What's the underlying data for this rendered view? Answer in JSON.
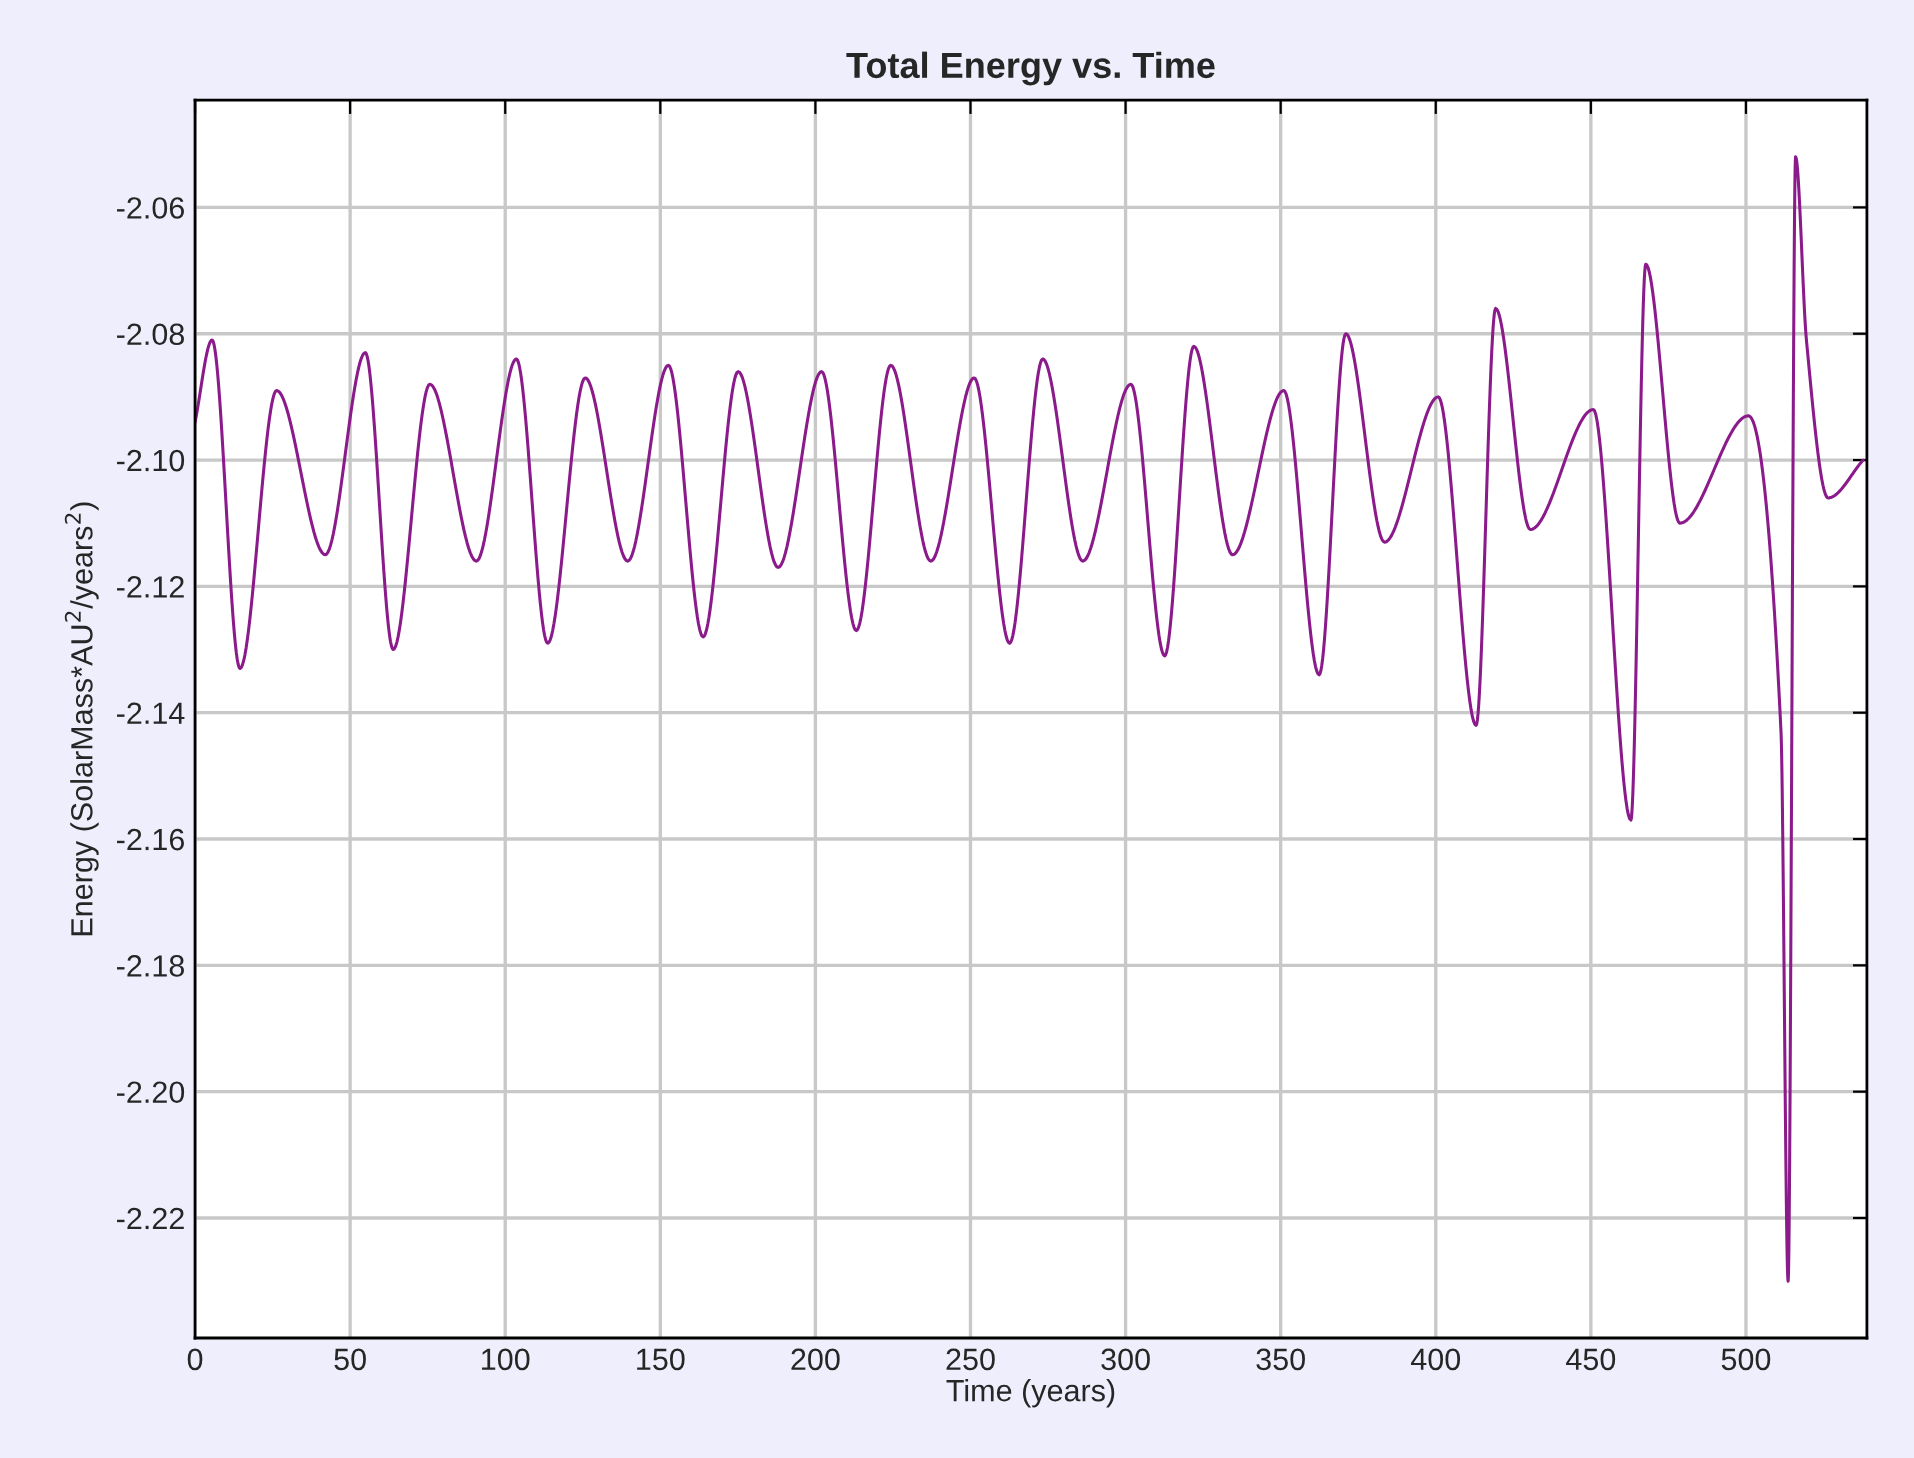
{
  "chart_data": {
    "type": "line",
    "title": "Total Energy vs. Time",
    "xlabel": "Time (years)",
    "ylabel": "Energy (SolarMass*AU$^{2}$/years$^{2}$)",
    "series": [
      {
        "color": "#8b1a8b",
        "x": [
          0,
          5.5,
          14.5,
          26.3,
          42,
          54.9,
          63.9,
          75.7,
          90.7,
          103.6,
          113.7,
          125.8,
          139.5,
          152.6,
          163.8,
          175.1,
          188,
          202,
          213.2,
          224.3,
          237.2,
          251.2,
          262.6,
          273.3,
          286.2,
          301.7,
          312.6,
          322,
          334.5,
          351,
          362.4,
          371,
          383.5,
          400.8,
          413,
          419.3,
          430.5,
          450.8,
          462.9,
          467.7,
          478.7,
          500.8,
          511.3,
          513.6,
          516,
          519.5,
          526.5,
          537.8
        ],
        "values": [
          -2.094,
          -2.081,
          -2.133,
          -2.089,
          -2.115,
          -2.083,
          -2.13,
          -2.088,
          -2.116,
          -2.084,
          -2.129,
          -2.087,
          -2.116,
          -2.085,
          -2.128,
          -2.086,
          -2.117,
          -2.086,
          -2.127,
          -2.085,
          -2.116,
          -2.087,
          -2.129,
          -2.084,
          -2.116,
          -2.088,
          -2.131,
          -2.082,
          -2.115,
          -2.089,
          -2.134,
          -2.08,
          -2.113,
          -2.09,
          -2.142,
          -2.076,
          -2.111,
          -2.092,
          -2.157,
          -2.069,
          -2.11,
          -2.093,
          -2.143,
          -2.23,
          -2.052,
          -2.081,
          -2.106,
          -2.1
        ]
      }
    ],
    "xlim": [
      0,
      539
    ],
    "ylim": [
      -2.239,
      -2.043
    ],
    "xticks": [
      0,
      50,
      100,
      150,
      200,
      250,
      300,
      350,
      400,
      450,
      500
    ],
    "yticks": [
      -2.22,
      {
        "value": -2.2,
        "label": "-2.20"
      },
      -2.18,
      -2.16,
      -2.14,
      -2.12,
      {
        "value": -2.1,
        "label": "-2.10"
      },
      -2.08,
      -2.06
    ],
    "grid": true,
    "marker": "none",
    "line_style": "solid"
  }
}
